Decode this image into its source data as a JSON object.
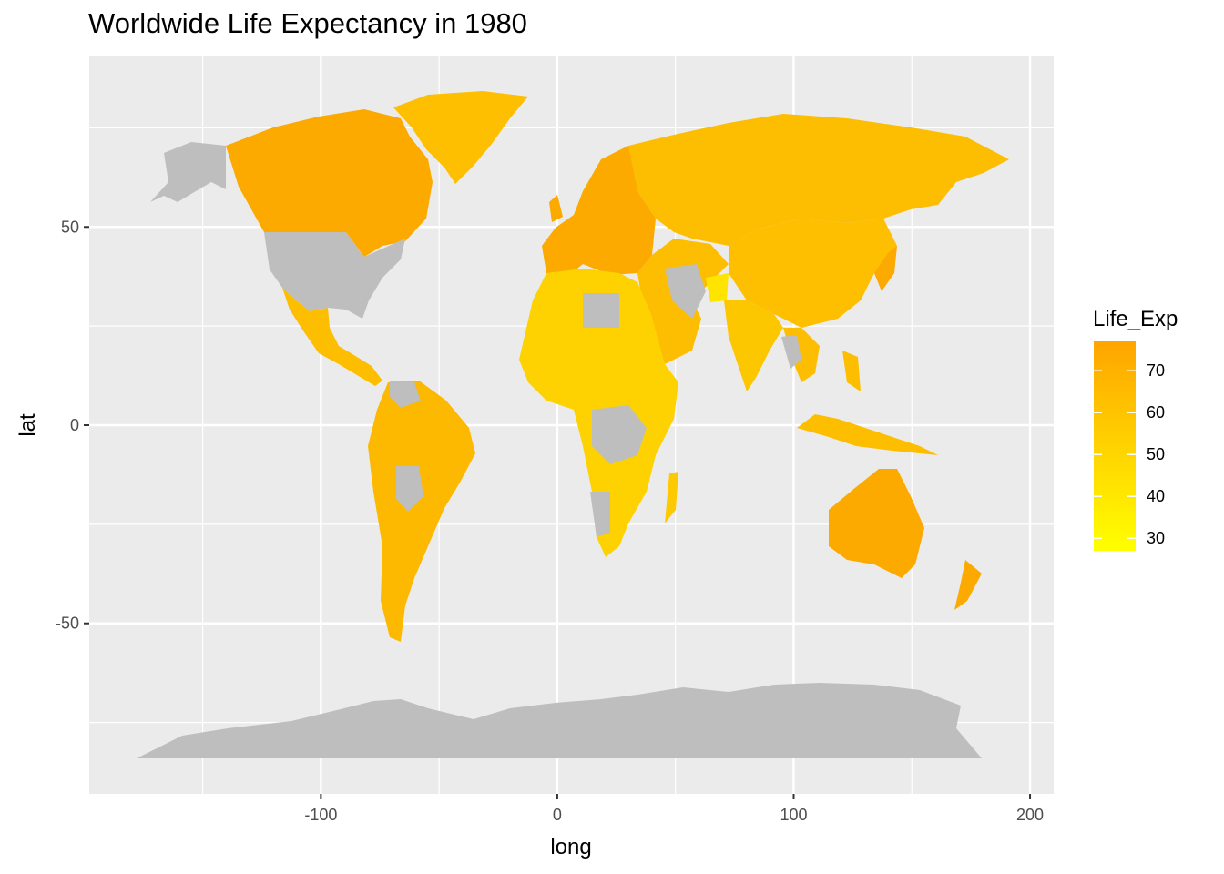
{
  "title": "Worldwide Life Expectancy in 1980",
  "chart_data": {
    "type": "map",
    "title": "Worldwide Life Expectancy in 1980",
    "xlabel": "long",
    "ylabel": "lat",
    "xlim": [
      -198,
      210
    ],
    "ylim": [
      -93,
      93
    ],
    "x_ticks": [
      -100,
      0,
      100,
      200
    ],
    "x_tick_labels": [
      "-100",
      "0",
      "100",
      "200"
    ],
    "y_ticks": [
      -50,
      0,
      50
    ],
    "y_tick_labels": [
      "-50",
      "0",
      "50"
    ],
    "grid": true,
    "missing_color": "#bebebe",
    "legend": {
      "title": "Life_Exp",
      "placement": "right",
      "low_color": "#ffff00",
      "high_color": "#ffa500",
      "range": [
        27,
        77
      ],
      "ticks": [
        30,
        40,
        50,
        60,
        70
      ],
      "tick_labels": [
        "30",
        "40",
        "50",
        "60",
        "70"
      ]
    }
  }
}
